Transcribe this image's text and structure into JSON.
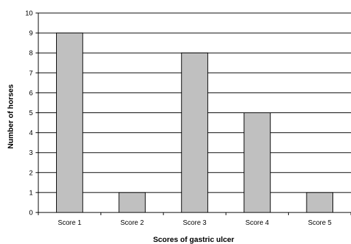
{
  "chart_data": {
    "type": "bar",
    "categories": [
      "Score 1",
      "Score 2",
      "Score 3",
      "Score 4",
      "Score 5"
    ],
    "values": [
      9,
      1,
      8,
      5,
      1
    ],
    "xlabel": "Scores of gastric ulcer",
    "ylabel": "Number of horses",
    "ylim": [
      0,
      10
    ],
    "yticks": [
      0,
      1,
      2,
      3,
      4,
      5,
      6,
      7,
      8,
      9,
      10
    ],
    "grid": true,
    "bar_color": "#c0c0c0",
    "bar_outline": "#000000",
    "legend": false
  }
}
